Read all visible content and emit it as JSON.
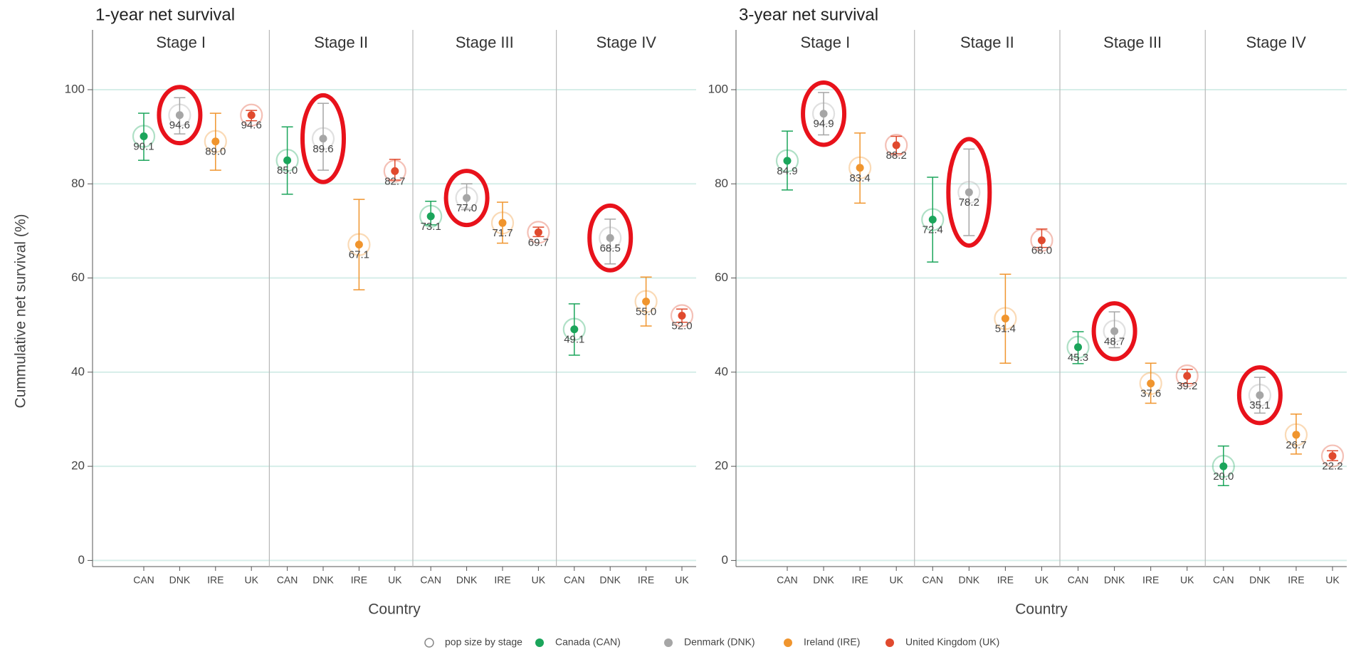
{
  "chart_data": [
    {
      "type": "errorbar",
      "title": "1-year net survival",
      "y_label": "Cummulative net survival (%)",
      "x_label": "Country",
      "groups": [
        "Stage I",
        "Stage II",
        "Stage III",
        "Stage IV"
      ],
      "categories": [
        "CAN",
        "DNK",
        "IRE",
        "UK"
      ],
      "ylim": [
        -1.3,
        112.7
      ],
      "yticks": [
        0,
        20,
        40,
        60,
        80,
        100
      ],
      "grid": true,
      "series": [
        {
          "name": "Canada (CAN)",
          "color": "#1ba55b",
          "values": [
            90.1,
            85.0,
            73.1,
            49.1
          ],
          "value_labels": [
            "90.1",
            "85.0",
            "73.1",
            "49.1"
          ],
          "lower": [
            85.0,
            77.8,
            71.3,
            43.6
          ],
          "upper": [
            95.0,
            92.1,
            76.3,
            54.5
          ]
        },
        {
          "name": "Denmark (DNK)",
          "color": "#a6a6a6",
          "values": [
            94.6,
            89.6,
            77.0,
            68.5
          ],
          "value_labels": [
            "94.6",
            "89.6",
            "77.0",
            "68.5"
          ],
          "lower": [
            90.6,
            82.9,
            74.5,
            63.0
          ],
          "upper": [
            98.3,
            97.1,
            80.0,
            72.5
          ]
        },
        {
          "name": "Ireland (IRE)",
          "color": "#f0952e",
          "values": [
            89.0,
            67.1,
            71.7,
            55.0
          ],
          "value_labels": [
            "89.0",
            "67.1",
            "71.7",
            "55.0"
          ],
          "lower": [
            82.9,
            57.5,
            67.4,
            49.8
          ],
          "upper": [
            95.0,
            76.7,
            76.1,
            60.2
          ]
        },
        {
          "name": "United Kingdom (UK)",
          "color": "#e04a2e",
          "values": [
            94.6,
            82.7,
            69.7,
            52.0
          ],
          "value_labels": [
            "94.6",
            "82.7",
            "69.7",
            "52.0"
          ],
          "lower": [
            93.4,
            80.8,
            68.8,
            50.6
          ],
          "upper": [
            95.6,
            85.2,
            70.8,
            53.4
          ]
        }
      ]
    },
    {
      "type": "errorbar",
      "title": "3-year net survival",
      "x_label": "Country",
      "groups": [
        "Stage I",
        "Stage II",
        "Stage III",
        "Stage IV"
      ],
      "categories": [
        "CAN",
        "DNK",
        "IRE",
        "UK"
      ],
      "ylim": [
        -1.3,
        112.7
      ],
      "yticks": [
        0,
        20,
        40,
        60,
        80,
        100
      ],
      "grid": true,
      "series": [
        {
          "color": "#1ba55b",
          "values": [
            84.9,
            72.4,
            45.3,
            20.0
          ],
          "value_labels": [
            "84.9",
            "72.4",
            "45.3",
            "20.0"
          ],
          "lower": [
            78.7,
            63.4,
            41.8,
            15.9
          ],
          "upper": [
            91.2,
            81.4,
            48.6,
            24.3
          ]
        },
        {
          "color": "#a6a6a6",
          "values": [
            94.9,
            78.2,
            48.7,
            35.1
          ],
          "value_labels": [
            "94.9",
            "78.2",
            "48.7",
            "35.1"
          ],
          "lower": [
            90.4,
            69.0,
            45.2,
            31.3
          ],
          "upper": [
            99.4,
            87.4,
            52.8,
            38.9
          ]
        },
        {
          "color": "#f0952e",
          "values": [
            83.4,
            51.4,
            37.6,
            26.7
          ],
          "value_labels": [
            "83.4",
            "51.4",
            "37.6",
            "26.7"
          ],
          "lower": [
            75.9,
            41.9,
            33.4,
            22.6
          ],
          "upper": [
            90.8,
            60.8,
            41.9,
            31.1
          ]
        },
        {
          "color": "#e04a2e",
          "values": [
            88.2,
            68.0,
            39.2,
            22.2
          ],
          "value_labels": [
            "88.2",
            "68.0",
            "39.2",
            "22.2"
          ],
          "lower": [
            86.4,
            66.5,
            37.6,
            21.2
          ],
          "upper": [
            90.1,
            70.4,
            40.6,
            23.3
          ]
        }
      ]
    }
  ],
  "legend": {
    "pop_size_label": "pop size by stage"
  }
}
